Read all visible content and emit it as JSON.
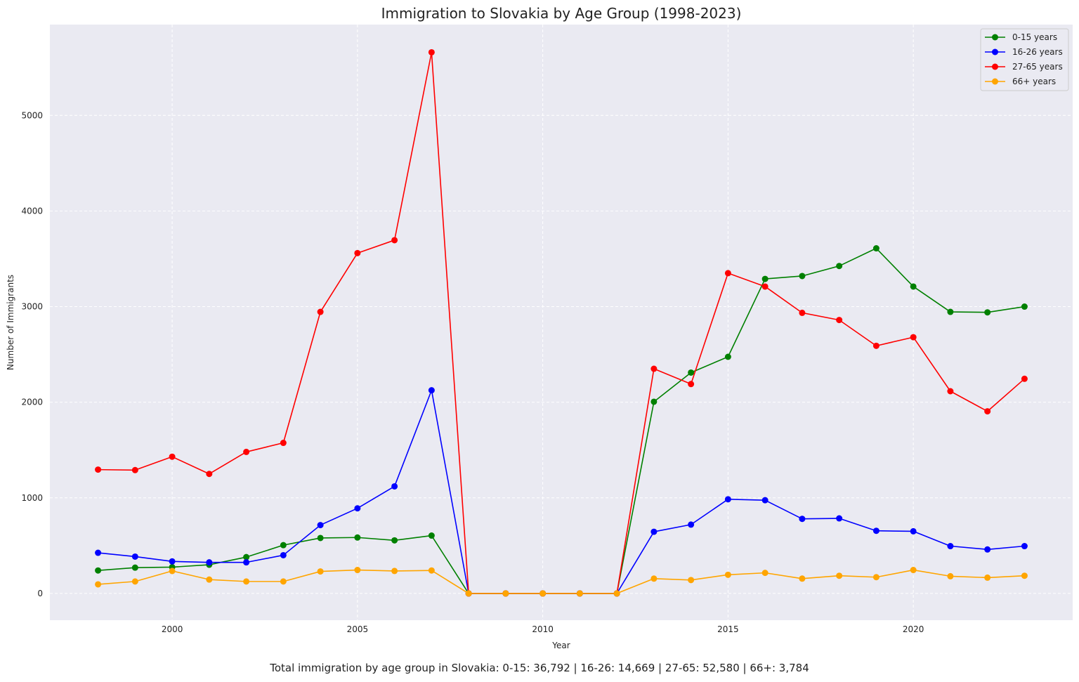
{
  "chart_data": {
    "type": "line",
    "title": "Immigration to Slovakia by Age Group (1998-2023)",
    "xlabel": "Year",
    "ylabel": "Number of Immigrants",
    "x": [
      1998,
      1999,
      2000,
      2001,
      2002,
      2003,
      2004,
      2005,
      2006,
      2007,
      2008,
      2009,
      2010,
      2011,
      2012,
      2013,
      2014,
      2015,
      2016,
      2017,
      2018,
      2019,
      2020,
      2021,
      2022,
      2023
    ],
    "xlim": [
      1996.7,
      2024.3
    ],
    "ylim": [
      -280,
      5950
    ],
    "xticks": [
      2000,
      2005,
      2010,
      2015,
      2020
    ],
    "yticks": [
      0,
      1000,
      2000,
      3000,
      4000,
      5000
    ],
    "grid": true,
    "legend_position": "top-right",
    "series": [
      {
        "name": "0-15 years",
        "color": "#008000",
        "values": [
          240,
          270,
          275,
          300,
          380,
          505,
          580,
          585,
          555,
          605,
          0,
          0,
          0,
          0,
          0,
          2005,
          2310,
          2475,
          3290,
          3320,
          3425,
          3610,
          3210,
          2945,
          2940,
          3000
        ]
      },
      {
        "name": "16-26 years",
        "color": "#0000ff",
        "values": [
          425,
          385,
          335,
          325,
          325,
          400,
          715,
          890,
          1120,
          2125,
          0,
          0,
          0,
          0,
          0,
          645,
          720,
          985,
          975,
          780,
          785,
          655,
          650,
          495,
          460,
          495
        ]
      },
      {
        "name": "27-65 years",
        "color": "#ff0000",
        "values": [
          1295,
          1290,
          1430,
          1250,
          1480,
          1575,
          2945,
          3560,
          3695,
          5660,
          0,
          0,
          0,
          0,
          0,
          2350,
          2190,
          3350,
          3210,
          2935,
          2860,
          2590,
          2680,
          2115,
          1905,
          2245
        ]
      },
      {
        "name": "66+ years",
        "color": "#ffa500",
        "values": [
          95,
          125,
          235,
          145,
          125,
          125,
          230,
          245,
          235,
          240,
          0,
          0,
          0,
          0,
          0,
          155,
          140,
          195,
          215,
          155,
          185,
          170,
          245,
          180,
          165,
          185
        ]
      }
    ],
    "annotation": "Total immigration by age group in Slovakia: 0-15: 36,792 | 16-26: 14,669 | 27-65: 52,580 | 66+: 3,784"
  },
  "colors": {
    "plot_background": "#eaeaf2",
    "grid": "#ffffff"
  }
}
